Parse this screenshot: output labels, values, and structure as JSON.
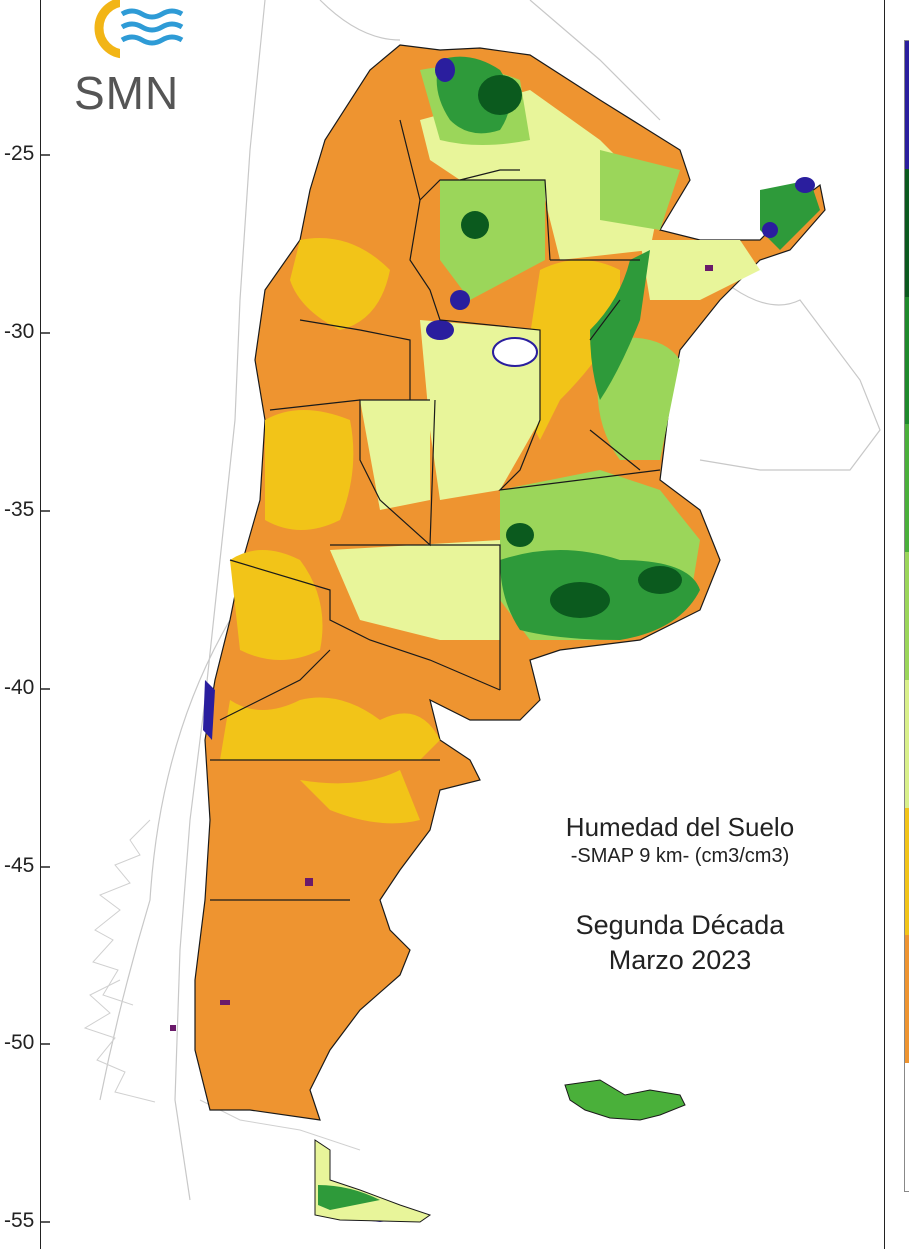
{
  "logo": {
    "text": "SMN",
    "icon": "smn-logo-icon"
  },
  "map_title": {
    "line1": "Humedad del Suelo",
    "line2": "-SMAP 9 km- (cm3/cm3)",
    "line3": "Segunda Década",
    "line4": "Marzo 2023"
  },
  "axis": {
    "y_ticks": [
      "-25",
      "-30",
      "-35",
      "-40",
      "-45",
      "-50",
      "-55"
    ]
  },
  "legend_colors": [
    "#2a1e9e",
    "#0b5a1e",
    "#1f8a2c",
    "#4ab03a",
    "#9bd65a",
    "#d9f08a",
    "#f2c418",
    "#ee9430",
    "#ffffff"
  ],
  "colors": {
    "dry": "#ee9430",
    "semi_dry": "#f2c418",
    "moderate": "#e8f59a",
    "moist": "#9bd65a",
    "wet": "#2e9a3a",
    "very_wet": "#0b5a1e",
    "saturated": "#2a1e9e",
    "border": "#1a1a1a",
    "outline": "#cccccc"
  }
}
